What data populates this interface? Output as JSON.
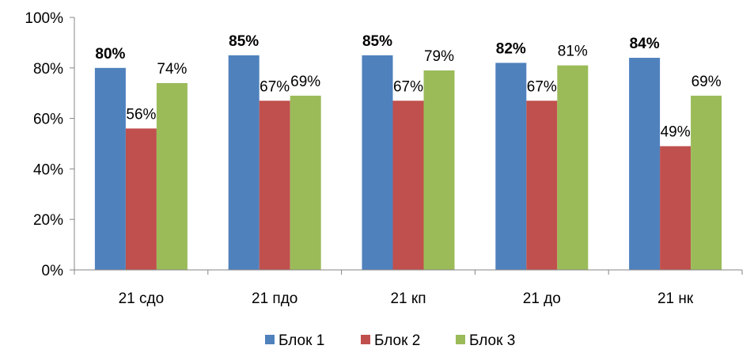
{
  "chart_data": {
    "type": "bar",
    "categories": [
      "21 сдо",
      "21 пдо",
      "21 кп",
      "21 до",
      "21 нк"
    ],
    "series": [
      {
        "name": "Блок 1",
        "values": [
          80,
          85,
          85,
          82,
          84
        ],
        "color": "#4F81BD",
        "labels": [
          "80%",
          "85%",
          "85%",
          "82%",
          "84%"
        ],
        "label_bold": true
      },
      {
        "name": "Блок 2",
        "values": [
          56,
          67,
          67,
          67,
          49
        ],
        "color": "#C0504D",
        "labels": [
          "56%",
          "67%",
          "67%",
          "67%",
          "49%"
        ],
        "label_bold": false
      },
      {
        "name": "Блок 3",
        "values": [
          74,
          69,
          79,
          81,
          69
        ],
        "color": "#9BBB59",
        "labels": [
          "74%",
          "69%",
          "79%",
          "81%",
          "69%"
        ],
        "label_bold": false
      }
    ],
    "y_ticks": [
      "0%",
      "20%",
      "40%",
      "60%",
      "80%",
      "100%"
    ],
    "ylim": [
      0,
      100
    ],
    "grid": false,
    "legend_position": "bottom"
  }
}
